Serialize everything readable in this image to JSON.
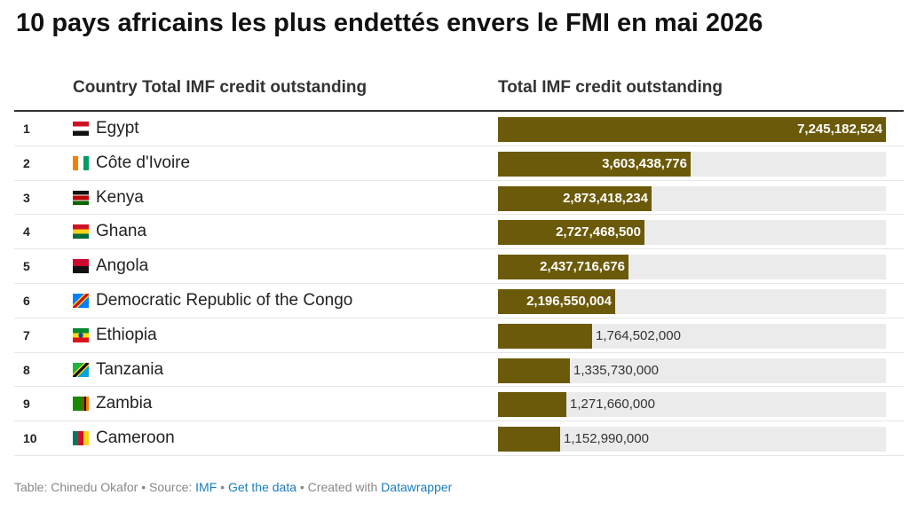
{
  "title": "10 pays africains les plus endettés envers le FMI en mai 2026",
  "table": {
    "country_header": "Country Total IMF credit outstanding",
    "value_header": "Total IMF credit outstanding"
  },
  "footer": {
    "table_label": "Table: Chinedu Okafor",
    "sep1": " • Source: ",
    "source_link": "IMF",
    "sep2": " • ",
    "data_link": "Get the data",
    "sep3": " • Created with ",
    "tool_link": "Datawrapper"
  },
  "colors": {
    "bar": "#6b5a0a",
    "track": "#ebebeb",
    "link": "#1a7cbd"
  },
  "chart_data": {
    "type": "bar",
    "orientation": "horizontal",
    "xlim": [
      0,
      7245182524
    ],
    "rows": [
      {
        "rank": "1",
        "country": "Egypt",
        "flag": "egypt-flag-icon",
        "value": 7245182524,
        "label": "7,245,182,524"
      },
      {
        "rank": "2",
        "country": "Côte d'Ivoire",
        "flag": "cote-divoire-flag-icon",
        "value": 3603438776,
        "label": "3,603,438,776"
      },
      {
        "rank": "3",
        "country": "Kenya",
        "flag": "kenya-flag-icon",
        "value": 2873418234,
        "label": "2,873,418,234"
      },
      {
        "rank": "4",
        "country": "Ghana",
        "flag": "ghana-flag-icon",
        "value": 2727468500,
        "label": "2,727,468,500"
      },
      {
        "rank": "5",
        "country": "Angola",
        "flag": "angola-flag-icon",
        "value": 2437716676,
        "label": "2,437,716,676"
      },
      {
        "rank": "6",
        "country": "Democratic Republic of the Congo",
        "flag": "drc-flag-icon",
        "value": 2196550004,
        "label": "2,196,550,004"
      },
      {
        "rank": "7",
        "country": "Ethiopia",
        "flag": "ethiopia-flag-icon",
        "value": 1764502000,
        "label": "1,764,502,000"
      },
      {
        "rank": "8",
        "country": "Tanzania",
        "flag": "tanzania-flag-icon",
        "value": 1335730000,
        "label": "1,335,730,000"
      },
      {
        "rank": "9",
        "country": "Zambia",
        "flag": "zambia-flag-icon",
        "value": 1271660000,
        "label": "1,271,660,000"
      },
      {
        "rank": "10",
        "country": "Cameroon",
        "flag": "cameroon-flag-icon",
        "value": 1152990000,
        "label": "1,152,990,000"
      }
    ]
  }
}
